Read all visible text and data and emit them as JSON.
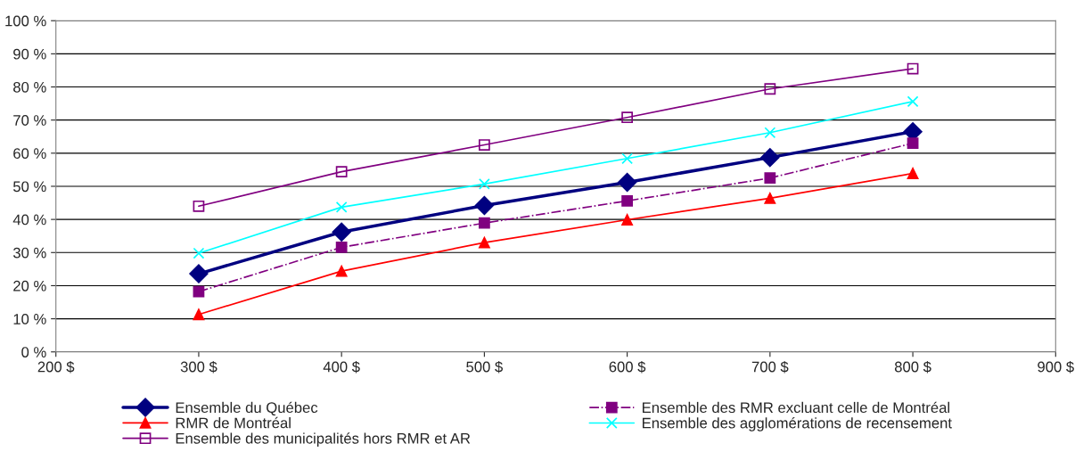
{
  "chart_data": {
    "type": "line",
    "x": [
      300,
      400,
      500,
      600,
      700,
      800
    ],
    "xlim": [
      200,
      900
    ],
    "xticks": [
      {
        "value": 200,
        "label": "200 $"
      },
      {
        "value": 300,
        "label": "300 $"
      },
      {
        "value": 400,
        "label": "400 $"
      },
      {
        "value": 500,
        "label": "500 $"
      },
      {
        "value": 600,
        "label": "600 $"
      },
      {
        "value": 700,
        "label": "700 $"
      },
      {
        "value": 800,
        "label": "800 $"
      },
      {
        "value": 900,
        "label": "900 $"
      }
    ],
    "ylim": [
      0,
      100
    ],
    "yticks": [
      {
        "value": 0,
        "label": "0 %"
      },
      {
        "value": 10,
        "label": "10 %"
      },
      {
        "value": 20,
        "label": "20 %"
      },
      {
        "value": 30,
        "label": "30 %"
      },
      {
        "value": 40,
        "label": "40 %"
      },
      {
        "value": 50,
        "label": "50 %"
      },
      {
        "value": 60,
        "label": "60 %"
      },
      {
        "value": 70,
        "label": "70 %"
      },
      {
        "value": 80,
        "label": "80 %"
      },
      {
        "value": 90,
        "label": "90 %"
      },
      {
        "value": 100,
        "label": "100 %"
      }
    ],
    "grid": "y",
    "legend": "bottom",
    "series": [
      {
        "name": "Ensemble du Québec",
        "color": "#000080",
        "marker": "diamond",
        "line_style": "solid",
        "values": [
          23.6,
          36.2,
          44.2,
          51.2,
          58.7,
          66.5
        ]
      },
      {
        "name": "Ensemble des RMR excluant celle de Montréal",
        "color": "#800080",
        "marker": "square",
        "line_style": "dashed",
        "values": [
          18.2,
          31.6,
          38.9,
          45.6,
          52.5,
          63
        ]
      },
      {
        "name": "RMR de Montréal",
        "color": "#ff0000",
        "marker": "triangle",
        "line_style": "solid",
        "values": [
          11.3,
          24.4,
          33,
          39.9,
          46.4,
          53.9
        ]
      },
      {
        "name": "Ensemble des agglomérations de recensement",
        "color": "#00ffff",
        "marker": "cross",
        "line_style": "solid",
        "values": [
          29.8,
          43.7,
          50.7,
          58.4,
          66.2,
          75.6
        ]
      },
      {
        "name": "Ensemble des municipalités hors RMR et AR",
        "color": "#800080",
        "marker": "square",
        "line_style": "solid",
        "values": [
          44,
          54.4,
          62.5,
          70.8,
          79.4,
          85.5
        ]
      }
    ]
  }
}
